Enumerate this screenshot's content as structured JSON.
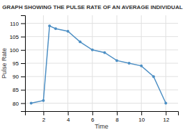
{
  "chart_data": {
    "type": "line",
    "title": "GRAPH SHOWING THE PULSE RATE OF AN AVERAGE INDIVIDUAL",
    "xlabel": "Time",
    "ylabel": "Pulse Rate",
    "x": [
      1,
      2,
      2.5,
      3,
      4,
      5,
      6,
      7,
      8,
      9,
      10,
      11,
      12
    ],
    "values": [
      80,
      81,
      109,
      108,
      107,
      103,
      100,
      99,
      96,
      95,
      94,
      90,
      80
    ],
    "color": "#4d8fc4",
    "marker": "circle",
    "xlim": [
      0.5,
      13
    ],
    "ylim": [
      77,
      113
    ],
    "xticks": [
      2,
      4,
      6,
      8,
      10,
      12
    ],
    "yticks": [
      80,
      85,
      90,
      95,
      100,
      105,
      110
    ],
    "grid": true
  }
}
